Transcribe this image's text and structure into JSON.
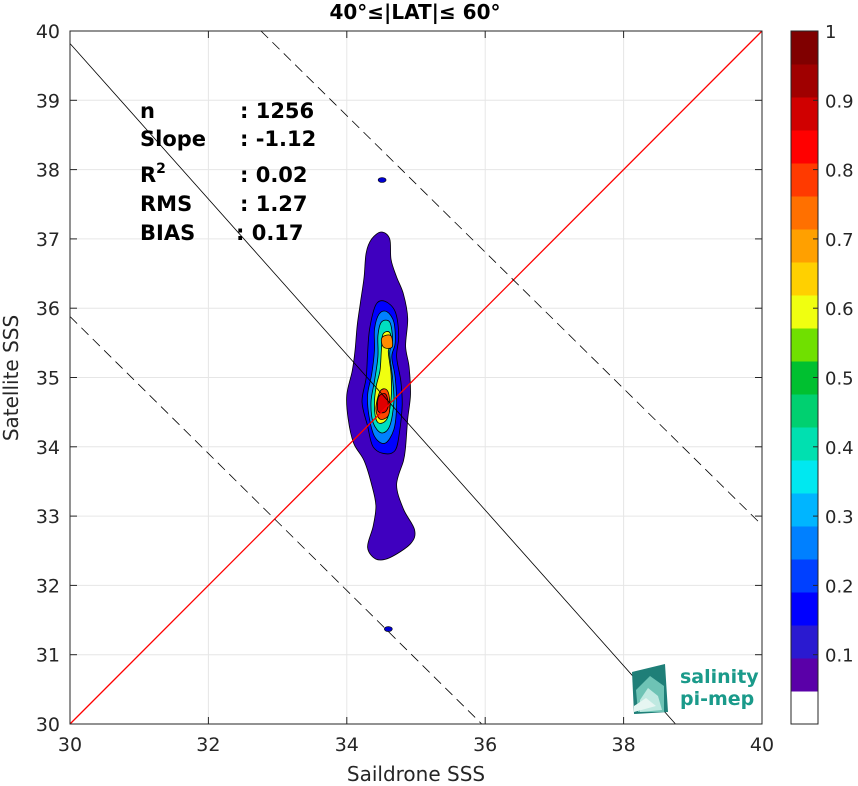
{
  "chart_data": {
    "type": "heatmap",
    "title": "40°≤|LAT|≤ 60°",
    "xlabel": "Saildrone SSS",
    "ylabel": "Satellite SSS",
    "xlim": [
      30,
      40
    ],
    "ylim": [
      30,
      40
    ],
    "xticks": [
      "30",
      "32",
      "34",
      "36",
      "38",
      "40"
    ],
    "yticks": [
      "30",
      "31",
      "32",
      "33",
      "34",
      "35",
      "36",
      "37",
      "38",
      "39",
      "40"
    ],
    "grid": true,
    "stats": [
      {
        "label": "n",
        "value": ": 1256"
      },
      {
        "label": "Slope",
        "value": ": -1.12"
      },
      {
        "label": "R",
        "sup": "2",
        "value": ": 0.02"
      },
      {
        "label": "RMS",
        "value": ": 1.27"
      },
      {
        "label": "BIAS",
        "value": ": 0.17"
      }
    ],
    "reference_lines": [
      {
        "name": "identity",
        "points": [
          [
            30,
            30
          ],
          [
            40,
            40
          ]
        ],
        "color": "#ff0000",
        "style": "solid"
      },
      {
        "name": "fit",
        "points": [
          [
            30,
            39.82
          ],
          [
            38.75,
            30
          ]
        ],
        "color": "#000000",
        "style": "solid"
      },
      {
        "name": "fit-plus-rms",
        "points": [
          [
            32.76,
            40
          ],
          [
            40,
            32.87
          ]
        ],
        "color": "#000000",
        "style": "dashed"
      },
      {
        "name": "fit-minus-rms",
        "points": [
          [
            30,
            35.88
          ],
          [
            35.95,
            30
          ]
        ],
        "color": "#000000",
        "style": "dashed"
      }
    ],
    "density_contours": [
      {
        "level": 0.05,
        "color": "#3f00bf",
        "points": [
          [
            34.36,
            37.0
          ],
          [
            34.5,
            37.1
          ],
          [
            34.62,
            37.0
          ],
          [
            34.64,
            36.7
          ],
          [
            34.72,
            36.45
          ],
          [
            34.82,
            36.2
          ],
          [
            34.88,
            35.85
          ],
          [
            34.85,
            35.45
          ],
          [
            34.9,
            35.15
          ],
          [
            34.92,
            34.75
          ],
          [
            34.88,
            34.4
          ],
          [
            34.85,
            34.0
          ],
          [
            34.82,
            33.8
          ],
          [
            34.72,
            33.45
          ],
          [
            34.82,
            33.1
          ],
          [
            34.98,
            32.8
          ],
          [
            34.92,
            32.6
          ],
          [
            34.62,
            32.4
          ],
          [
            34.42,
            32.38
          ],
          [
            34.3,
            32.55
          ],
          [
            34.38,
            32.85
          ],
          [
            34.42,
            33.15
          ],
          [
            34.36,
            33.45
          ],
          [
            34.25,
            33.8
          ],
          [
            34.1,
            34.05
          ],
          [
            34.02,
            34.4
          ],
          [
            34.0,
            34.75
          ],
          [
            34.08,
            35.1
          ],
          [
            34.12,
            35.4
          ],
          [
            34.15,
            35.75
          ],
          [
            34.2,
            36.1
          ],
          [
            34.25,
            36.45
          ],
          [
            34.28,
            36.8
          ]
        ]
      },
      {
        "level": 0.15,
        "color": "#0000ff",
        "points": [
          [
            34.42,
            36.05
          ],
          [
            34.55,
            36.1
          ],
          [
            34.7,
            35.95
          ],
          [
            34.75,
            35.6
          ],
          [
            34.72,
            35.3
          ],
          [
            34.78,
            34.95
          ],
          [
            34.8,
            34.6
          ],
          [
            34.76,
            34.2
          ],
          [
            34.7,
            33.95
          ],
          [
            34.55,
            33.9
          ],
          [
            34.38,
            34.0
          ],
          [
            34.3,
            34.3
          ],
          [
            34.22,
            34.65
          ],
          [
            34.28,
            35.0
          ],
          [
            34.3,
            35.35
          ],
          [
            34.33,
            35.7
          ]
        ]
      },
      {
        "level": 0.25,
        "color": "#0080ff",
        "points": [
          [
            34.47,
            35.92
          ],
          [
            34.58,
            35.95
          ],
          [
            34.68,
            35.8
          ],
          [
            34.7,
            35.5
          ],
          [
            34.65,
            35.3
          ],
          [
            34.7,
            35.0
          ],
          [
            34.72,
            34.6
          ],
          [
            34.68,
            34.25
          ],
          [
            34.55,
            34.05
          ],
          [
            34.4,
            34.15
          ],
          [
            34.32,
            34.45
          ],
          [
            34.3,
            34.75
          ],
          [
            34.36,
            35.05
          ],
          [
            34.4,
            35.4
          ],
          [
            34.4,
            35.7
          ]
        ]
      },
      {
        "level": 0.4,
        "color": "#00e0c0",
        "points": [
          [
            34.5,
            35.8
          ],
          [
            34.62,
            35.8
          ],
          [
            34.66,
            35.55
          ],
          [
            34.62,
            35.35
          ],
          [
            34.66,
            35.0
          ],
          [
            34.68,
            34.65
          ],
          [
            34.62,
            34.3
          ],
          [
            34.5,
            34.2
          ],
          [
            34.38,
            34.35
          ],
          [
            34.35,
            34.65
          ],
          [
            34.4,
            34.95
          ],
          [
            34.45,
            35.3
          ],
          [
            34.45,
            35.6
          ]
        ]
      },
      {
        "level": 0.6,
        "color": "#f0ff10",
        "points": [
          [
            34.52,
            35.62
          ],
          [
            34.62,
            35.65
          ],
          [
            34.65,
            35.45
          ],
          [
            34.6,
            35.38
          ],
          [
            34.64,
            35.05
          ],
          [
            34.64,
            34.7
          ],
          [
            34.58,
            34.4
          ],
          [
            34.45,
            34.35
          ],
          [
            34.4,
            34.55
          ],
          [
            34.42,
            34.85
          ],
          [
            34.48,
            35.1
          ],
          [
            34.5,
            35.4
          ]
        ]
      },
      {
        "level": 0.75,
        "color": "#ff8c00",
        "points": [
          [
            34.54,
            35.6
          ],
          [
            34.64,
            35.6
          ],
          [
            34.66,
            35.45
          ],
          [
            34.6,
            35.42
          ],
          [
            34.52,
            35.45
          ],
          [
            34.5,
            35.55
          ]
        ]
      },
      {
        "level": 0.8,
        "color": "#ff4500",
        "points": [
          [
            34.48,
            34.8
          ],
          [
            34.58,
            34.82
          ],
          [
            34.62,
            34.65
          ],
          [
            34.6,
            34.45
          ],
          [
            34.48,
            34.4
          ],
          [
            34.42,
            34.55
          ]
        ]
      },
      {
        "level": 0.9,
        "color": "#e00000",
        "points": [
          [
            34.46,
            34.72
          ],
          [
            34.56,
            34.76
          ],
          [
            34.6,
            34.6
          ],
          [
            34.55,
            34.5
          ],
          [
            34.45,
            34.52
          ]
        ]
      }
    ],
    "isolated_blobs": [
      {
        "center": [
          34.51,
          37.85
        ],
        "level": 0.1,
        "color": "#0000d0"
      },
      {
        "center": [
          34.6,
          31.37
        ],
        "level": 0.1,
        "color": "#0000d0"
      }
    ],
    "colorbar": {
      "ticks": [
        "0.1",
        "0.2",
        "0.3",
        "0.4",
        "0.5",
        "0.6",
        "0.7",
        "0.8",
        "0.9",
        "1"
      ],
      "colors": [
        "#ffffff",
        "#5a00a8",
        "#2a1ad0",
        "#0000ff",
        "#0040ff",
        "#0080ff",
        "#00b5ff",
        "#00e8f0",
        "#00e0b0",
        "#00d070",
        "#00c030",
        "#70e000",
        "#f0ff10",
        "#ffd000",
        "#ffa000",
        "#ff7000",
        "#ff3a00",
        "#ff0000",
        "#d00000",
        "#a00000",
        "#800000"
      ]
    }
  },
  "logo": {
    "line1": "salinity",
    "line2": "pi-mep"
  },
  "colors": {
    "accent": "#1a9a8a"
  }
}
